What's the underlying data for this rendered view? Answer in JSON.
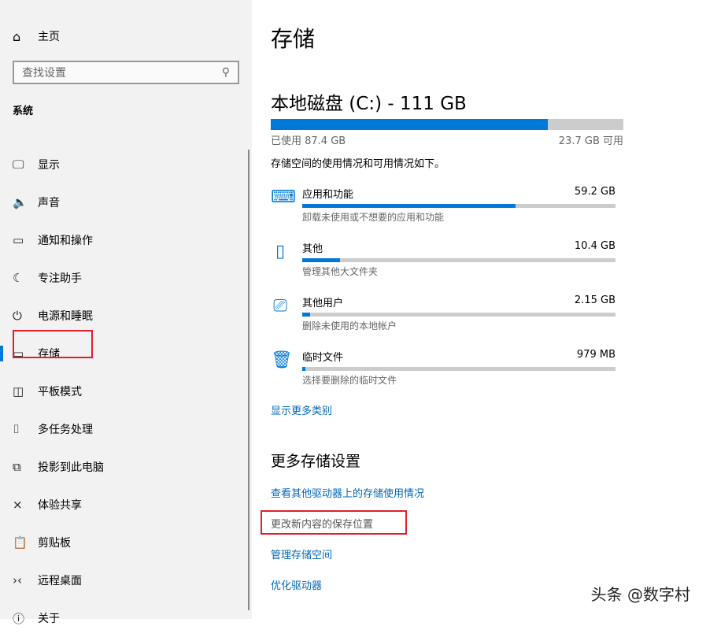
{
  "sidebar": {
    "home": {
      "icon": "home-icon",
      "label": "主页"
    },
    "search": {
      "placeholder": "查找设置",
      "icon": "search-icon"
    },
    "section": "系统",
    "items": [
      {
        "label": "显示",
        "icon": "monitor-icon"
      },
      {
        "label": "声音",
        "icon": "speaker-icon"
      },
      {
        "label": "通知和操作",
        "icon": "notification-icon"
      },
      {
        "label": "专注助手",
        "icon": "moon-icon"
      },
      {
        "label": "电源和睡眠",
        "icon": "power-icon"
      },
      {
        "label": "存储",
        "icon": "storage-icon",
        "selected": true
      },
      {
        "label": "平板模式",
        "icon": "tablet-icon"
      },
      {
        "label": "多任务处理",
        "icon": "multitask-icon"
      },
      {
        "label": "投影到此电脑",
        "icon": "project-icon"
      },
      {
        "label": "体验共享",
        "icon": "share-icon"
      },
      {
        "label": "剪贴板",
        "icon": "clipboard-icon"
      },
      {
        "label": "远程桌面",
        "icon": "remote-desktop-icon"
      },
      {
        "label": "关于",
        "icon": "info-icon"
      }
    ]
  },
  "main": {
    "title": "存储",
    "disk": {
      "title": "本地磁盘 (C:) - 111 GB",
      "used_label": "已使用 87.4 GB",
      "free_label": "23.7 GB 可用",
      "used_fraction": 0.786
    },
    "description": "存储空间的使用情况和可用情况如下。",
    "categories": [
      {
        "name": "应用和功能",
        "size": "59.2 GB",
        "sub": "卸载未使用或不想要的应用和功能",
        "fraction": 0.68,
        "icon": "keyboard-monitor-icon"
      },
      {
        "name": "其他",
        "size": "10.4 GB",
        "sub": "管理其他大文件夹",
        "fraction": 0.12,
        "icon": "folder-icon"
      },
      {
        "name": "其他用户",
        "size": "2.15 GB",
        "sub": "删除未使用的本地帐户",
        "fraction": 0.025,
        "icon": "user-monitor-icon"
      },
      {
        "name": "临时文件",
        "size": "979 MB",
        "sub": "选择要删除的临时文件",
        "fraction": 0.01,
        "icon": "trash-icon"
      }
    ],
    "show_more": "显示更多类别",
    "more_title": "更多存储设置",
    "links": [
      "查看其他驱动器上的存储使用情况",
      "更改新内容的保存位置",
      "管理存储空间",
      "优化驱动器"
    ]
  },
  "colors": {
    "accent": "#0078d7",
    "highlight_box": "#e0202a"
  },
  "watermark": "头条 @数字村"
}
